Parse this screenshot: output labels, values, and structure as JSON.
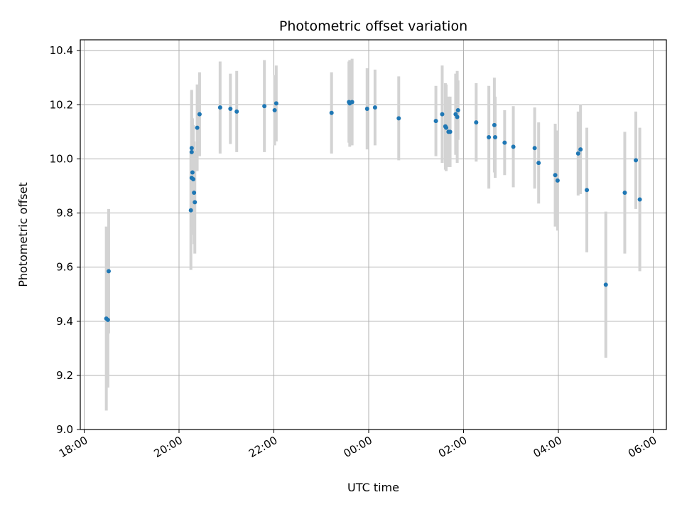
{
  "chart_data": {
    "type": "scatter",
    "title": "Photometric offset variation",
    "xlabel": "UTC time",
    "ylabel": "Photometric offset",
    "grid": true,
    "legend": "none",
    "colors": {
      "point": "#1f77b4",
      "errorbar": "#d3d3d3",
      "grid": "#b0b0b0"
    },
    "x_axis": {
      "kind": "time",
      "range": [
        "18:00",
        "06:00"
      ],
      "tick_labels": [
        "18:00",
        "20:00",
        "22:00",
        "00:00",
        "02:00",
        "04:00",
        "06:00"
      ]
    },
    "y_axis": {
      "range": [
        9.0,
        10.44
      ],
      "ticks": [
        9.0,
        9.2,
        9.4,
        9.6,
        9.8,
        10.0,
        10.2,
        10.4
      ],
      "tick_labels": [
        "9.0",
        "9.2",
        "9.4",
        "9.6",
        "9.8",
        "10.0",
        "10.2",
        "10.4"
      ]
    },
    "points": [
      {
        "x": "18:28",
        "y": 9.41,
        "err": 0.34
      },
      {
        "x": "18:30",
        "y": 9.405,
        "err": 0.25
      },
      {
        "x": "18:31",
        "y": 9.585,
        "err": 0.23
      },
      {
        "x": "20:15",
        "y": 9.81,
        "err": 0.22
      },
      {
        "x": "20:16",
        "y": 10.025,
        "err": 0.23
      },
      {
        "x": "20:16",
        "y": 10.04,
        "err": 0.21
      },
      {
        "x": "20:16",
        "y": 9.93,
        "err": 0.21
      },
      {
        "x": "20:17",
        "y": 9.95,
        "err": 0.2
      },
      {
        "x": "20:18",
        "y": 9.925,
        "err": 0.2
      },
      {
        "x": "20:19",
        "y": 9.875,
        "err": 0.19
      },
      {
        "x": "20:20",
        "y": 9.84,
        "err": 0.19
      },
      {
        "x": "20:23",
        "y": 10.115,
        "err": 0.16
      },
      {
        "x": "20:26",
        "y": 10.165,
        "err": 0.155
      },
      {
        "x": "20:52",
        "y": 10.19,
        "err": 0.17
      },
      {
        "x": "21:05",
        "y": 10.185,
        "err": 0.13
      },
      {
        "x": "21:13",
        "y": 10.175,
        "err": 0.15
      },
      {
        "x": "21:48",
        "y": 10.195,
        "err": 0.17
      },
      {
        "x": "22:01",
        "y": 10.18,
        "err": 0.13
      },
      {
        "x": "22:03",
        "y": 10.205,
        "err": 0.14
      },
      {
        "x": "23:13",
        "y": 10.17,
        "err": 0.15
      },
      {
        "x": "23:35",
        "y": 10.21,
        "err": 0.15
      },
      {
        "x": "23:36",
        "y": 10.205,
        "err": 0.16
      },
      {
        "x": "23:39",
        "y": 10.21,
        "err": 0.16
      },
      {
        "x": "23:58",
        "y": 10.185,
        "err": 0.15
      },
      {
        "x": "00:08",
        "y": 10.19,
        "err": 0.14
      },
      {
        "x": "00:38",
        "y": 10.15,
        "err": 0.155
      },
      {
        "x": "01:25",
        "y": 10.14,
        "err": 0.13
      },
      {
        "x": "01:33",
        "y": 10.165,
        "err": 0.18
      },
      {
        "x": "01:37",
        "y": 10.12,
        "err": 0.16
      },
      {
        "x": "01:38",
        "y": 10.115,
        "err": 0.16
      },
      {
        "x": "01:41",
        "y": 10.1,
        "err": 0.13
      },
      {
        "x": "01:43",
        "y": 10.1,
        "err": 0.13
      },
      {
        "x": "01:50",
        "y": 10.165,
        "err": 0.15
      },
      {
        "x": "01:52",
        "y": 10.155,
        "err": 0.17
      },
      {
        "x": "01:53",
        "y": 10.18,
        "err": 0.11
      },
      {
        "x": "02:16",
        "y": 10.135,
        "err": 0.145
      },
      {
        "x": "02:32",
        "y": 10.08,
        "err": 0.19
      },
      {
        "x": "02:39",
        "y": 10.125,
        "err": 0.175
      },
      {
        "x": "02:40",
        "y": 10.08,
        "err": 0.15
      },
      {
        "x": "02:52",
        "y": 10.06,
        "err": 0.12
      },
      {
        "x": "03:03",
        "y": 10.045,
        "err": 0.15
      },
      {
        "x": "03:30",
        "y": 10.04,
        "err": 0.15
      },
      {
        "x": "03:35",
        "y": 9.985,
        "err": 0.15
      },
      {
        "x": "03:56",
        "y": 9.94,
        "err": 0.19
      },
      {
        "x": "03:59",
        "y": 9.92,
        "err": 0.185
      },
      {
        "x": "04:25",
        "y": 10.02,
        "err": 0.155
      },
      {
        "x": "04:28",
        "y": 10.035,
        "err": 0.165
      },
      {
        "x": "04:36",
        "y": 9.885,
        "err": 0.23
      },
      {
        "x": "05:00",
        "y": 9.535,
        "err": 0.27
      },
      {
        "x": "05:24",
        "y": 9.875,
        "err": 0.225
      },
      {
        "x": "05:38",
        "y": 9.995,
        "err": 0.18
      },
      {
        "x": "05:43",
        "y": 9.85,
        "err": 0.265
      }
    ]
  }
}
